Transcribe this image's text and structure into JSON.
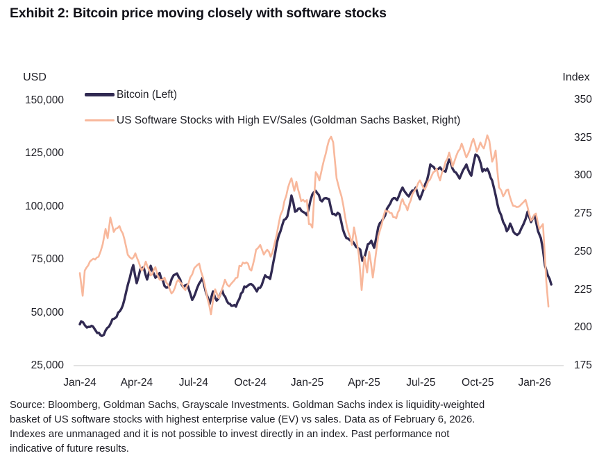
{
  "title": "Exhibit 2: Bitcoin price moving closely with software stocks",
  "source_lines": [
    "Source: Bloomberg, Goldman Sachs, Grayscale Investments. Goldman Sachs index is liquidity-weighted",
    "basket of US software stocks with highest enterprise value (EV) vs sales. Data as of February 6, 2026.",
    "Indexes are unmanaged and it is not possible to invest directly in an index. Past performance not",
    "indicative of future results."
  ],
  "colors": {
    "bitcoin_line": "#312a52",
    "software_line": "#f8b89c",
    "axis_line": "#d8d8d8",
    "text": "#1f1f26"
  },
  "chart_data": {
    "type": "line",
    "title": "Bitcoin price vs US software stocks",
    "x_unit": "months since Jan-2024",
    "grid": "off",
    "legend_position": "top-left-inside",
    "x_axis": {
      "tick_labels": [
        "Jan-24",
        "Apr-24",
        "Jul-24",
        "Oct-24",
        "Jan-25",
        "Apr-25",
        "Jul-25",
        "Oct-25",
        "Jan-26"
      ],
      "tick_months": [
        0,
        3,
        6,
        9,
        12,
        15,
        18,
        21,
        24
      ]
    },
    "left_axis": {
      "label": "USD",
      "range": [
        25000,
        150000
      ],
      "tick_labels": [
        "150,000",
        "125,000",
        "100,000",
        "75,000",
        "50,000",
        "25,000"
      ],
      "tick_values": [
        150000,
        125000,
        100000,
        75000,
        50000,
        25000
      ]
    },
    "right_axis": {
      "label": "Index",
      "range": [
        175,
        350
      ],
      "tick_labels": [
        "350",
        "325",
        "300",
        "275",
        "250",
        "225",
        "200",
        "175"
      ],
      "tick_values": [
        350,
        325,
        300,
        275,
        250,
        225,
        200,
        175
      ]
    },
    "legend": [
      {
        "name": "Bitcoin (Left)",
        "color": "#312a52"
      },
      {
        "name": "US Software Stocks with High EV/Sales (Goldman Sachs Basket, Right)",
        "color": "#f8b89c"
      }
    ],
    "series": [
      {
        "name": "Bitcoin (Left)",
        "axis": "left",
        "color": "#312a52",
        "stroke_width": 3.4,
        "jitter": 700,
        "points": [
          [
            0,
            44500
          ],
          [
            0.07,
            45900
          ],
          [
            0.37,
            43000
          ],
          [
            0.7,
            43400
          ],
          [
            0.92,
            40400
          ],
          [
            1.17,
            39000
          ],
          [
            1.54,
            43400
          ],
          [
            1.72,
            46900
          ],
          [
            1.94,
            48000
          ],
          [
            2.27,
            53500
          ],
          [
            2.45,
            60000
          ],
          [
            2.64,
            66500
          ],
          [
            2.82,
            72400
          ],
          [
            3,
            63900
          ],
          [
            3.19,
            70400
          ],
          [
            3.37,
            71400
          ],
          [
            3.55,
            65600
          ],
          [
            3.74,
            72100
          ],
          [
            3.99,
            66500
          ],
          [
            4.21,
            68700
          ],
          [
            4.47,
            62600
          ],
          [
            4.65,
            62000
          ],
          [
            4.95,
            67600
          ],
          [
            5.13,
            68500
          ],
          [
            5.46,
            62000
          ],
          [
            5.68,
            63300
          ],
          [
            5.93,
            56000
          ],
          [
            6.19,
            61600
          ],
          [
            6.48,
            66500
          ],
          [
            6.67,
            59000
          ],
          [
            6.85,
            54100
          ],
          [
            7.03,
            60000
          ],
          [
            7.22,
            55700
          ],
          [
            7.51,
            60600
          ],
          [
            7.84,
            54400
          ],
          [
            8.24,
            52800
          ],
          [
            8.68,
            62300
          ],
          [
            9.12,
            63000
          ],
          [
            9.34,
            60000
          ],
          [
            9.6,
            63000
          ],
          [
            9.78,
            67600
          ],
          [
            10.04,
            65900
          ],
          [
            10.22,
            74100
          ],
          [
            10.4,
            82900
          ],
          [
            10.59,
            88400
          ],
          [
            10.77,
            93700
          ],
          [
            10.95,
            95300
          ],
          [
            11.17,
            105200
          ],
          [
            11.36,
            97600
          ],
          [
            11.61,
            99200
          ],
          [
            11.98,
            96000
          ],
          [
            12.27,
            105800
          ],
          [
            12.45,
            107400
          ],
          [
            12.78,
            102500
          ],
          [
            13,
            104000
          ],
          [
            13.15,
            103500
          ],
          [
            13.33,
            96500
          ],
          [
            13.7,
            96500
          ],
          [
            13.88,
            89400
          ],
          [
            14.07,
            85100
          ],
          [
            14.36,
            84000
          ],
          [
            14.58,
            81000
          ],
          [
            14.8,
            79700
          ],
          [
            14.91,
            74500
          ],
          [
            15.05,
            77000
          ],
          [
            15.2,
            82300
          ],
          [
            15.38,
            83900
          ],
          [
            15.53,
            80600
          ],
          [
            15.75,
            90400
          ],
          [
            16.01,
            94400
          ],
          [
            16.3,
            100300
          ],
          [
            16.56,
            104000
          ],
          [
            16.74,
            103000
          ],
          [
            17.03,
            109000
          ],
          [
            17.36,
            104800
          ],
          [
            17.73,
            109000
          ],
          [
            17.95,
            103500
          ],
          [
            18.32,
            112300
          ],
          [
            18.5,
            119900
          ],
          [
            18.75,
            117500
          ],
          [
            19.01,
            118500
          ],
          [
            19.3,
            116500
          ],
          [
            19.49,
            122200
          ],
          [
            19.67,
            117900
          ],
          [
            20.04,
            113300
          ],
          [
            20.4,
            119900
          ],
          [
            20.66,
            114600
          ],
          [
            20.88,
            124500
          ],
          [
            21.06,
            123000
          ],
          [
            21.25,
            116600
          ],
          [
            21.5,
            117900
          ],
          [
            21.76,
            112300
          ],
          [
            21.87,
            108100
          ],
          [
            22.12,
            98200
          ],
          [
            22.34,
            92700
          ],
          [
            22.53,
            88400
          ],
          [
            22.71,
            92000
          ],
          [
            22.97,
            87200
          ],
          [
            23.19,
            87500
          ],
          [
            23.41,
            91700
          ],
          [
            23.63,
            97600
          ],
          [
            23.81,
            92700
          ],
          [
            24,
            96000
          ],
          [
            24.18,
            88400
          ],
          [
            24.33,
            85100
          ],
          [
            24.44,
            79600
          ],
          [
            24.55,
            72100
          ],
          [
            24.7,
            67500
          ],
          [
            24.88,
            63300
          ]
        ]
      },
      {
        "name": "US Software Stocks with High EV/Sales (Goldman Sachs Basket, Right)",
        "axis": "right",
        "color": "#f8b89c",
        "stroke_width": 2.6,
        "jitter": 1.1,
        "points": [
          [
            0,
            236
          ],
          [
            0.15,
            221
          ],
          [
            0.26,
            237.6
          ],
          [
            0.62,
            244.5
          ],
          [
            0.99,
            246.7
          ],
          [
            1.21,
            255
          ],
          [
            1.36,
            265
          ],
          [
            1.47,
            259
          ],
          [
            1.61,
            272.5
          ],
          [
            1.79,
            263
          ],
          [
            2.09,
            267
          ],
          [
            2.27,
            262
          ],
          [
            2.53,
            248
          ],
          [
            2.75,
            245.3
          ],
          [
            2.93,
            249
          ],
          [
            3.26,
            237.6
          ],
          [
            3.48,
            243.5
          ],
          [
            3.74,
            234.4
          ],
          [
            3.99,
            239.9
          ],
          [
            4.21,
            231.6
          ],
          [
            4.47,
            233
          ],
          [
            4.84,
            222.5
          ],
          [
            5.2,
            231.6
          ],
          [
            5.57,
            224.8
          ],
          [
            5.82,
            233
          ],
          [
            6.04,
            239.2
          ],
          [
            6.3,
            242.2
          ],
          [
            6.59,
            228.4
          ],
          [
            6.92,
            208.8
          ],
          [
            7.14,
            225.3
          ],
          [
            7.33,
            219.4
          ],
          [
            7.66,
            231.6
          ],
          [
            7.88,
            227.1
          ],
          [
            8.32,
            233
          ],
          [
            8.42,
            240.8
          ],
          [
            8.79,
            243
          ],
          [
            9.05,
            237.6
          ],
          [
            9.3,
            251.3
          ],
          [
            9.52,
            254.5
          ],
          [
            9.71,
            248.1
          ],
          [
            9.89,
            251.3
          ],
          [
            10.07,
            246.7
          ],
          [
            10.26,
            254.5
          ],
          [
            10.4,
            261.8
          ],
          [
            10.59,
            274.2
          ],
          [
            10.7,
            277.3
          ],
          [
            10.99,
            292.4
          ],
          [
            11.17,
            298.4
          ],
          [
            11.32,
            290.1
          ],
          [
            11.43,
            296.1
          ],
          [
            11.68,
            283.3
          ],
          [
            11.98,
            284
          ],
          [
            12.09,
            268.2
          ],
          [
            12.27,
            265.9
          ],
          [
            12.45,
            302.4
          ],
          [
            12.64,
            297
          ],
          [
            12.89,
            310.7
          ],
          [
            13.15,
            323.5
          ],
          [
            13.26,
            325.8
          ],
          [
            13.37,
            322.1
          ],
          [
            13.55,
            298.4
          ],
          [
            13.7,
            291
          ],
          [
            13.81,
            286.5
          ],
          [
            14.1,
            266.4
          ],
          [
            14.36,
            254.5
          ],
          [
            14.47,
            266
          ],
          [
            14.72,
            248
          ],
          [
            14.87,
            224.8
          ],
          [
            15.02,
            246.8
          ],
          [
            15.16,
            236.3
          ],
          [
            15.27,
            250
          ],
          [
            15.46,
            233
          ],
          [
            15.75,
            260.4
          ],
          [
            16.12,
            277.3
          ],
          [
            16.37,
            275.5
          ],
          [
            16.7,
            272
          ],
          [
            17.03,
            284.7
          ],
          [
            17.29,
            277.3
          ],
          [
            17.55,
            287.9
          ],
          [
            17.95,
            297
          ],
          [
            18.21,
            291
          ],
          [
            18.57,
            300.2
          ],
          [
            18.83,
            304.8
          ],
          [
            19.01,
            297
          ],
          [
            19.3,
            309.3
          ],
          [
            19.49,
            315.3
          ],
          [
            19.67,
            306.1
          ],
          [
            20.15,
            321.2
          ],
          [
            20.4,
            312.1
          ],
          [
            20.77,
            324.4
          ],
          [
            20.95,
            316
          ],
          [
            21.14,
            322
          ],
          [
            21.32,
            318
          ],
          [
            21.5,
            326.7
          ],
          [
            21.61,
            323
          ],
          [
            21.76,
            309.3
          ],
          [
            21.94,
            316.7
          ],
          [
            22.12,
            292.4
          ],
          [
            22.34,
            286.5
          ],
          [
            22.6,
            291
          ],
          [
            22.86,
            280.3
          ],
          [
            23.15,
            279.6
          ],
          [
            23.52,
            284.2
          ],
          [
            23.81,
            270.5
          ],
          [
            24.07,
            275.1
          ],
          [
            24.25,
            265
          ],
          [
            24.44,
            268.2
          ],
          [
            24.55,
            245.4
          ],
          [
            24.62,
            229.9
          ],
          [
            24.73,
            213.9
          ]
        ]
      }
    ]
  }
}
